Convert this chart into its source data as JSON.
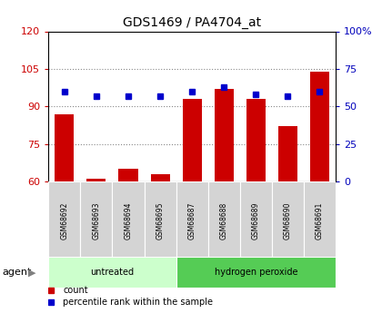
{
  "title": "GDS1469 / PA4704_at",
  "samples": [
    "GSM68692",
    "GSM68693",
    "GSM68694",
    "GSM68695",
    "GSM68687",
    "GSM68688",
    "GSM68689",
    "GSM68690",
    "GSM68691"
  ],
  "bar_values": [
    87,
    61,
    65,
    63,
    93,
    97,
    93,
    82,
    104
  ],
  "dot_percentiles": [
    60,
    57,
    57,
    57,
    60,
    63,
    58,
    57,
    60
  ],
  "bar_color": "#cc0000",
  "dot_color": "#0000cc",
  "ylim_left": [
    60,
    120
  ],
  "yticks_left": [
    60,
    75,
    90,
    105,
    120
  ],
  "ylim_right": [
    0,
    100
  ],
  "yticks_right": [
    0,
    25,
    50,
    75,
    100
  ],
  "groups": [
    {
      "label": "untreated",
      "indices": [
        0,
        1,
        2,
        3
      ],
      "color": "#ccffcc"
    },
    {
      "label": "hydrogen peroxide",
      "indices": [
        4,
        5,
        6,
        7,
        8
      ],
      "color": "#55cc55"
    }
  ],
  "group_label": "agent",
  "legend_items": [
    {
      "label": "count",
      "color": "#cc0000"
    },
    {
      "label": "percentile rank within the sample",
      "color": "#0000cc"
    }
  ],
  "grid_yticks": [
    75,
    90,
    105
  ],
  "grid_color": "#888888",
  "bar_width": 0.6,
  "background_color": "#ffffff",
  "tick_label_color_left": "#cc0000",
  "tick_label_color_right": "#0000bb"
}
